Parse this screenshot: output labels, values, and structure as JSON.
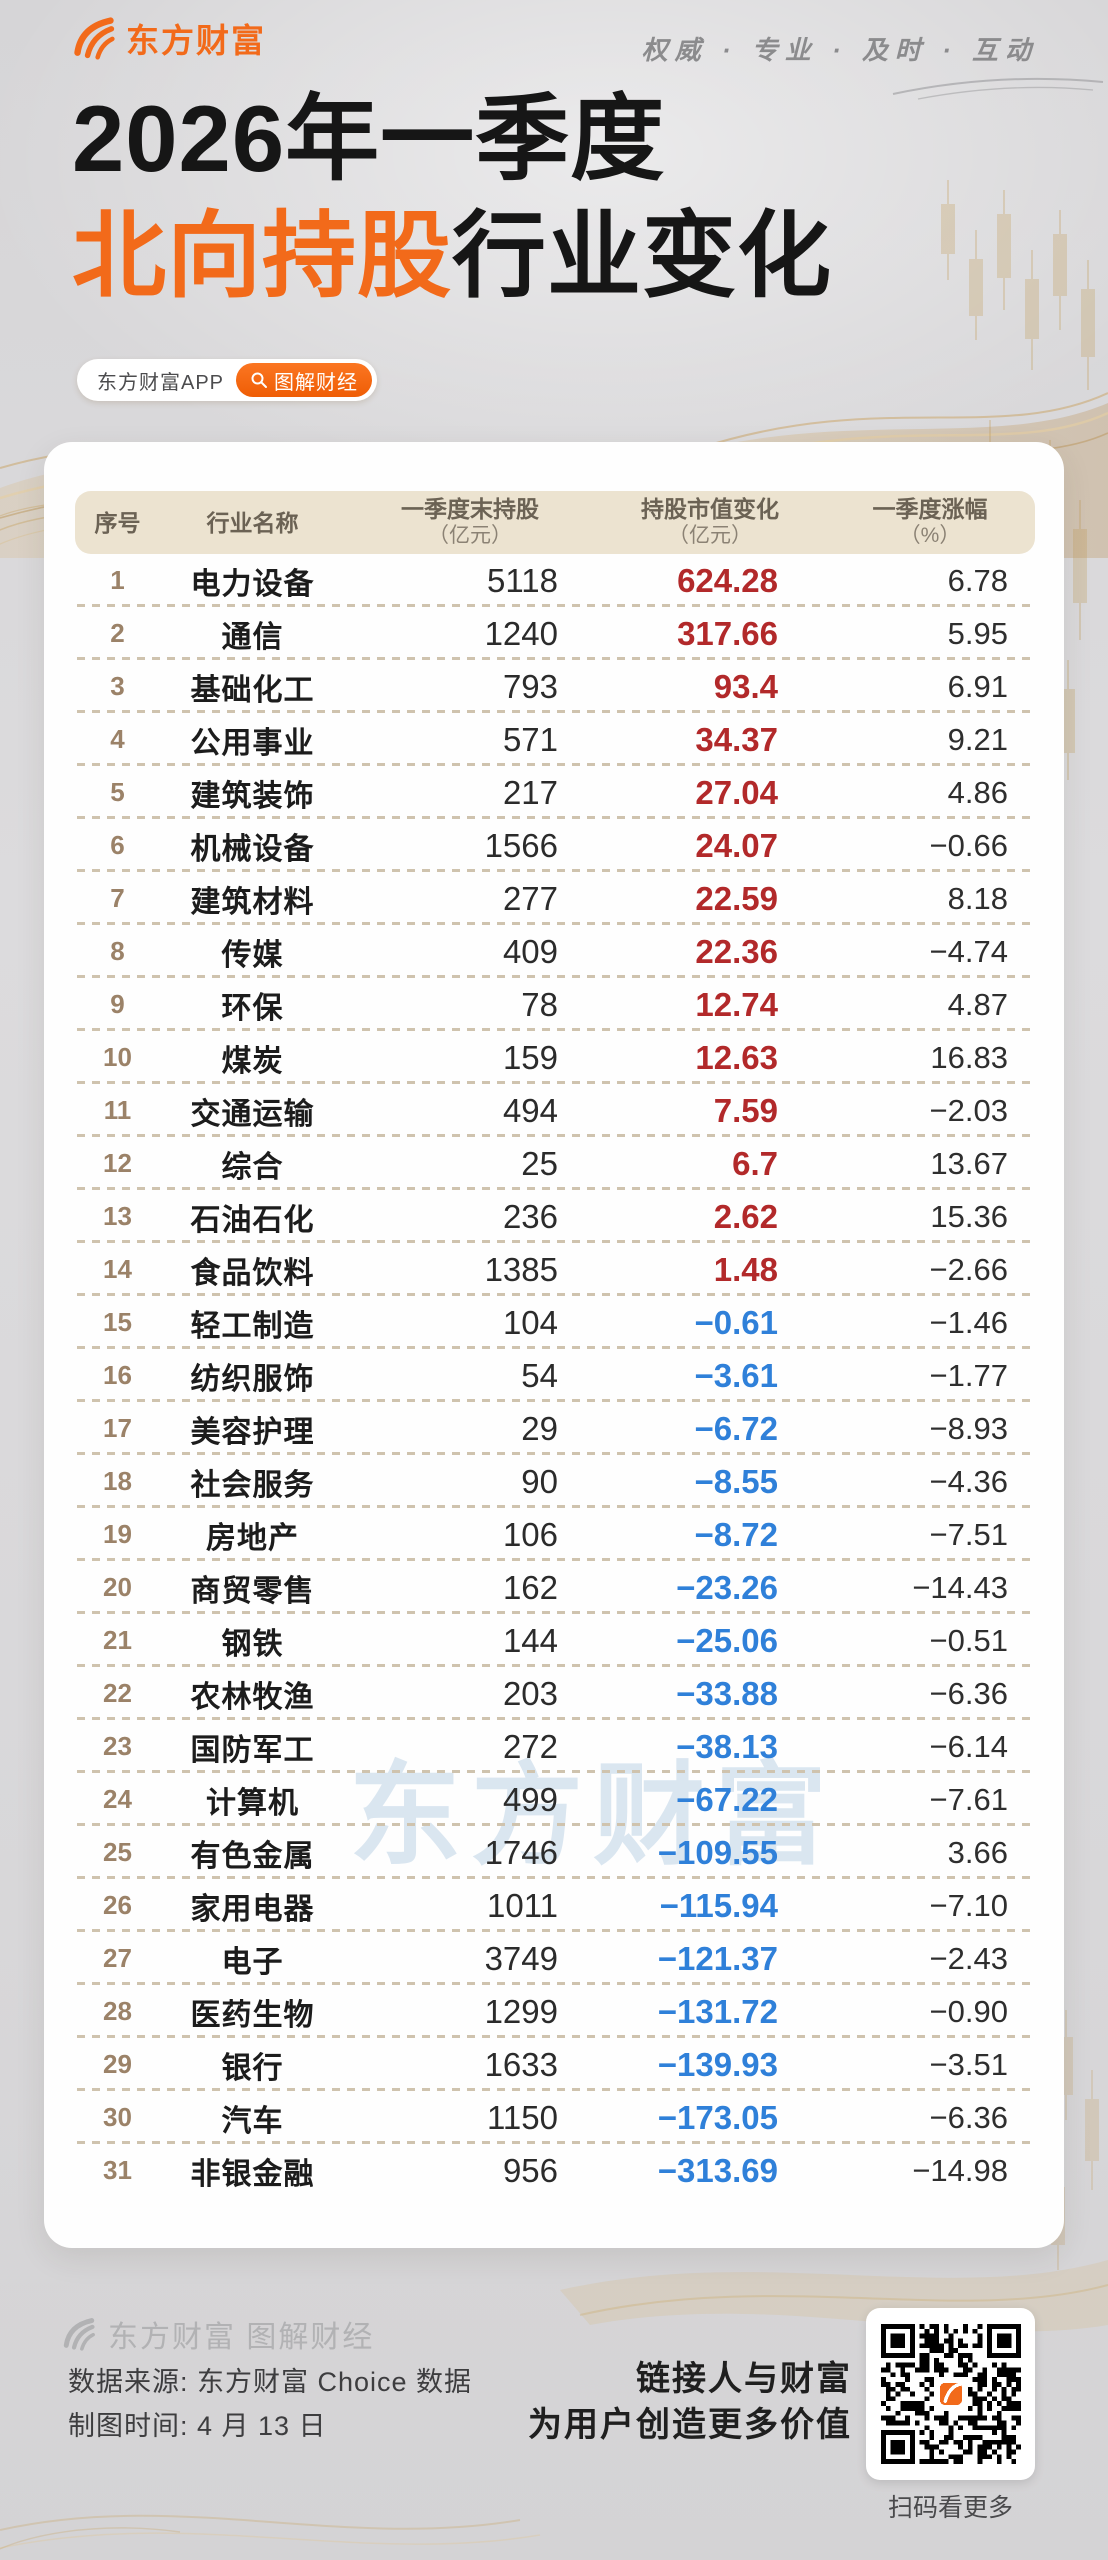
{
  "header": {
    "brand": "东方财富",
    "tagline": "权威 · 专业 · 及时 · 互动",
    "title_line1": "2026年一季度",
    "title_line2_highlight": "北向持股",
    "title_line2_rest": "行业变化",
    "badge_app": "东方财富APP",
    "badge_channel": "图解财经"
  },
  "watermark": "东方财富",
  "table": {
    "col_no": "序号",
    "col_industry": "行业名称",
    "col_holding": "一季度末持股",
    "col_holding_unit": "（亿元）",
    "col_change": "持股市值变化",
    "col_change_unit": "（亿元）",
    "col_pct": "一季度涨幅",
    "col_pct_unit": "（%）"
  },
  "chart_data": {
    "type": "table",
    "title": "2026年一季度北向持股行业变化",
    "columns": [
      "序号",
      "行业名称",
      "一季度末持股（亿元）",
      "持股市值变化（亿元）",
      "一季度涨幅（%）"
    ],
    "rows": [
      [
        "1",
        "电力设备",
        "5118",
        "624.28",
        "6.78"
      ],
      [
        "2",
        "通信",
        "1240",
        "317.66",
        "5.95"
      ],
      [
        "3",
        "基础化工",
        "793",
        "93.4",
        "6.91"
      ],
      [
        "4",
        "公用事业",
        "571",
        "34.37",
        "9.21"
      ],
      [
        "5",
        "建筑装饰",
        "217",
        "27.04",
        "4.86"
      ],
      [
        "6",
        "机械设备",
        "1566",
        "24.07",
        "−0.66"
      ],
      [
        "7",
        "建筑材料",
        "277",
        "22.59",
        "8.18"
      ],
      [
        "8",
        "传媒",
        "409",
        "22.36",
        "−4.74"
      ],
      [
        "9",
        "环保",
        "78",
        "12.74",
        "4.87"
      ],
      [
        "10",
        "煤炭",
        "159",
        "12.63",
        "16.83"
      ],
      [
        "11",
        "交通运输",
        "494",
        "7.59",
        "−2.03"
      ],
      [
        "12",
        "综合",
        "25",
        "6.7",
        "13.67"
      ],
      [
        "13",
        "石油石化",
        "236",
        "2.62",
        "15.36"
      ],
      [
        "14",
        "食品饮料",
        "1385",
        "1.48",
        "−2.66"
      ],
      [
        "15",
        "轻工制造",
        "104",
        "−0.61",
        "−1.46"
      ],
      [
        "16",
        "纺织服饰",
        "54",
        "−3.61",
        "−1.77"
      ],
      [
        "17",
        "美容护理",
        "29",
        "−6.72",
        "−8.93"
      ],
      [
        "18",
        "社会服务",
        "90",
        "−8.55",
        "−4.36"
      ],
      [
        "19",
        "房地产",
        "106",
        "−8.72",
        "−7.51"
      ],
      [
        "20",
        "商贸零售",
        "162",
        "−23.26",
        "−14.43"
      ],
      [
        "21",
        "钢铁",
        "144",
        "−25.06",
        "−0.51"
      ],
      [
        "22",
        "农林牧渔",
        "203",
        "−33.88",
        "−6.36"
      ],
      [
        "23",
        "国防军工",
        "272",
        "−38.13",
        "−6.14"
      ],
      [
        "24",
        "计算机",
        "499",
        "−67.22",
        "−7.61"
      ],
      [
        "25",
        "有色金属",
        "1746",
        "−109.55",
        "3.66"
      ],
      [
        "26",
        "家用电器",
        "1011",
        "−115.94",
        "−7.10"
      ],
      [
        "27",
        "电子",
        "3749",
        "−121.37",
        "−2.43"
      ],
      [
        "28",
        "医药生物",
        "1299",
        "−131.72",
        "−0.90"
      ],
      [
        "29",
        "银行",
        "1633",
        "−139.93",
        "−3.51"
      ],
      [
        "30",
        "汽车",
        "1150",
        "−173.05",
        "−6.36"
      ],
      [
        "31",
        "非银金融",
        "956",
        "−313.69",
        "−14.98"
      ]
    ]
  },
  "footer": {
    "brand_line": "东方财富 图解财经",
    "source_line": "数据来源: 东方财富 Choice 数据",
    "time_line": "制图时间: 4 月 13 日",
    "slogan_line1": "链接人与财富",
    "slogan_line2": "为用户创造更多价值",
    "qr_caption": "扫码看更多"
  },
  "colors": {
    "accent_orange": "#f26a1a",
    "positive_red": "#b2292a",
    "negative_blue": "#2f80d9",
    "header_beige": "#ece3d0",
    "row_number_tan": "#9b8268",
    "watermark_blue": "#b8cfe4",
    "gold": "#c9a45f"
  }
}
